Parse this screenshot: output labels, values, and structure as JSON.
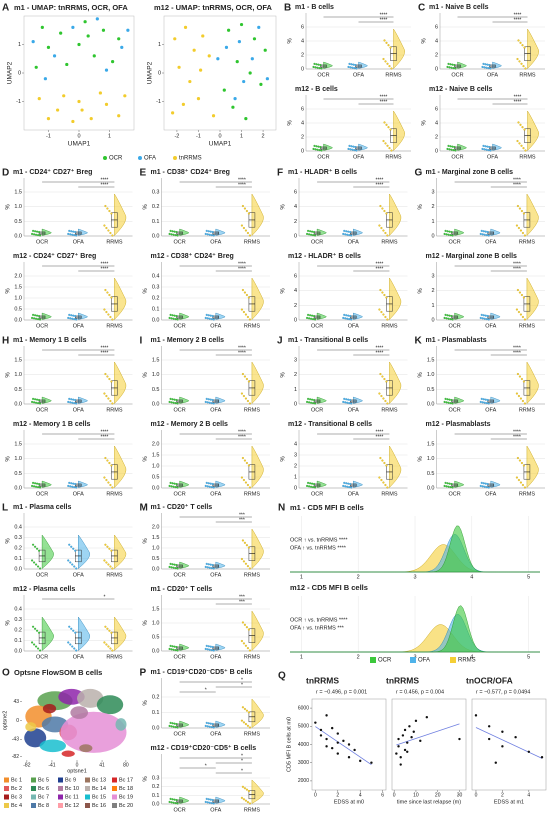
{
  "groups": [
    "OCR",
    "OFA",
    "RRMS"
  ],
  "ylabel": "%",
  "umap": {
    "legend": [
      "OCR",
      "OFA",
      "tnRRMS"
    ],
    "colors": [
      "#2fc52f",
      "#3aa9e8",
      "#f2cc2c"
    ],
    "panels": [
      {
        "letter": "A",
        "title": "m1 - UMAP: tnRRMS, OCR, OFA",
        "xlabel": "UMAP1",
        "ylabel": "UMAP2",
        "xlim": [
          -1.8,
          1.8
        ],
        "xticks": [
          -1,
          0,
          1
        ],
        "ylim": [
          -2,
          2
        ],
        "yticks": [
          -1,
          0,
          1
        ],
        "series": [
          {
            "x": [
              -1.2,
              -0.6,
              0.2,
              0.8,
              1.3,
              -1.0,
              0.0,
              0.5,
              -0.4,
              1.1,
              -1.4,
              0.3
            ],
            "values": [
              1.6,
              1.4,
              1.8,
              1.5,
              1.2,
              0.9,
              1.0,
              0.6,
              0.3,
              0.4,
              0.2,
              1.3
            ]
          },
          {
            "x": [
              -1.5,
              -0.8,
              0.6,
              1.4,
              -0.2,
              0.9,
              -1.1,
              1.6
            ],
            "values": [
              1.1,
              0.6,
              1.9,
              0.9,
              1.6,
              0.1,
              -0.2,
              1.5
            ]
          },
          {
            "x": [
              -1.3,
              -0.7,
              0.0,
              0.4,
              0.9,
              1.3,
              -0.2,
              0.7,
              -1.0,
              1.5,
              0.1,
              -0.5
            ],
            "values": [
              -0.9,
              -1.3,
              -1.0,
              -1.6,
              -1.1,
              -1.5,
              -1.7,
              -0.7,
              -1.6,
              -0.8,
              -1.3,
              -0.8
            ]
          }
        ]
      },
      {
        "letter": null,
        "title": "m12 - UMAP: tnRRMS, OCR, OFA",
        "xlabel": "UMAP1",
        "ylabel": "UMAP2",
        "xlim": [
          -2.6,
          2.6
        ],
        "xticks": [
          -2,
          -1,
          0,
          1,
          2
        ],
        "ylim": [
          -2,
          2
        ],
        "yticks": [
          -1,
          0,
          1
        ],
        "series": [
          {
            "x": [
              0.4,
              1.0,
              1.6,
              2.1,
              0.8,
              1.4,
              0.2,
              1.9,
              0.6,
              1.2
            ],
            "values": [
              1.5,
              1.7,
              1.2,
              0.8,
              0.4,
              0.0,
              -0.6,
              -0.4,
              -1.2,
              -1.6
            ]
          },
          {
            "x": [
              0.9,
              1.8,
              0.3,
              1.5,
              2.2,
              0.7,
              1.1,
              -0.1
            ],
            "values": [
              1.1,
              1.6,
              0.9,
              0.5,
              -0.2,
              -0.9,
              -0.3,
              0.5
            ]
          },
          {
            "x": [
              -2.1,
              -1.6,
              -1.2,
              -0.8,
              -1.9,
              -1.4,
              -0.5,
              -1.0,
              -2.2,
              -0.3,
              -1.7,
              -0.9
            ],
            "values": [
              1.2,
              1.6,
              0.8,
              1.3,
              0.2,
              -0.3,
              0.6,
              -0.9,
              -1.4,
              -1.5,
              -1.1,
              0.1
            ]
          }
        ]
      }
    ]
  },
  "violin_panels": [
    {
      "letter": "B",
      "subs": [
        {
          "title": "m1 - B cells",
          "ylim": [
            0,
            6
          ],
          "yticks": [
            0,
            2,
            4,
            6
          ],
          "sig": [
            "****",
            "****"
          ]
        },
        {
          "title": "m12 - B cells",
          "ylim": [
            0,
            6
          ],
          "yticks": [
            0,
            2,
            4,
            6
          ],
          "sig": [
            "****",
            "****"
          ]
        }
      ]
    },
    {
      "letter": "C",
      "subs": [
        {
          "title": "m1 - Naive B cells",
          "ylim": [
            0,
            6
          ],
          "yticks": [
            0,
            2,
            4,
            6
          ],
          "sig": [
            "****",
            "****"
          ]
        },
        {
          "title": "m12 - Naive B cells",
          "ylim": [
            0,
            6
          ],
          "yticks": [
            0,
            2,
            4,
            6
          ],
          "sig": [
            "****",
            "****"
          ]
        }
      ]
    },
    {
      "letter": "D",
      "subs": [
        {
          "title": "m1 - CD24⁺ CD27⁺ Breg",
          "ylim": [
            0,
            1.5
          ],
          "yticks": [
            {
              "value": 0,
              "label": "0.0"
            },
            0.5,
            {
              "value": 1,
              "label": "1.0"
            },
            1.5
          ],
          "sig": [
            "****",
            "****"
          ]
        },
        {
          "title": "m12 - CD24⁺ CD27⁺ Breg",
          "ylim": [
            0,
            2
          ],
          "yticks": [
            {
              "value": 0,
              "label": "0.0"
            },
            0.5,
            {
              "value": 1,
              "label": "1.0"
            },
            1.5,
            {
              "value": 2,
              "label": "2.0"
            }
          ],
          "sig": [
            "****",
            "****"
          ]
        }
      ]
    },
    {
      "letter": "E",
      "subs": [
        {
          "title": "m1 - CD38⁺ CD24⁺ Breg",
          "ylim": [
            0,
            0.3
          ],
          "yticks": [
            {
              "value": 0,
              "label": "0.0"
            },
            0.1,
            0.2,
            0.3
          ],
          "sig": [
            "****",
            "****"
          ]
        },
        {
          "title": "m12 - CD38⁺ CD24⁺ Breg",
          "ylim": [
            0,
            0.4
          ],
          "yticks": [
            {
              "value": 0,
              "label": "0.0"
            },
            0.1,
            0.2,
            0.3,
            0.4
          ],
          "sig": [
            "****",
            "****"
          ]
        }
      ]
    },
    {
      "letter": "F",
      "subs": [
        {
          "title": "m1 - HLADR⁺ B cells",
          "ylim": [
            0,
            6
          ],
          "yticks": [
            0,
            2,
            4,
            6
          ],
          "sig": [
            "****",
            "****"
          ]
        },
        {
          "title": "m12 - HLADR⁺ B cells",
          "ylim": [
            0,
            6
          ],
          "yticks": [
            0,
            2,
            4,
            6
          ],
          "sig": [
            "****",
            "****"
          ]
        }
      ]
    },
    {
      "letter": "G",
      "subs": [
        {
          "title": "m1 - Marginal zone B cells",
          "ylim": [
            0,
            3
          ],
          "yticks": [
            0,
            1,
            2,
            3
          ],
          "sig": [
            "****",
            "****"
          ]
        },
        {
          "title": "m12 - Marginal zone B cells",
          "ylim": [
            0,
            3
          ],
          "yticks": [
            0,
            1,
            2,
            3
          ],
          "sig": [
            "****",
            "****"
          ]
        }
      ]
    },
    {
      "letter": "H",
      "subs": [
        {
          "title": "m1 - Memory 1 B cells",
          "ylim": [
            0,
            1.5
          ],
          "yticks": [
            {
              "value": 0,
              "label": "0.0"
            },
            0.5,
            {
              "value": 1,
              "label": "1.0"
            },
            1.5
          ],
          "sig": [
            "****",
            "****"
          ]
        },
        {
          "title": "m12 - Memory 1 B cells",
          "ylim": [
            0,
            1.5
          ],
          "yticks": [
            {
              "value": 0,
              "label": "0.0"
            },
            0.5,
            {
              "value": 1,
              "label": "1.0"
            },
            1.5
          ],
          "sig": [
            "****",
            "****"
          ]
        }
      ]
    },
    {
      "letter": "I",
      "subs": [
        {
          "title": "m1 - Memory 2 B cells",
          "ylim": [
            0,
            1.5
          ],
          "yticks": [
            {
              "value": 0,
              "label": "0.0"
            },
            0.5,
            {
              "value": 1,
              "label": "1.0"
            },
            1.5
          ],
          "sig": [
            "****",
            "****"
          ]
        },
        {
          "title": "m12 - Memory 2 B cells",
          "ylim": [
            0,
            2
          ],
          "yticks": [
            {
              "value": 0,
              "label": "0.0"
            },
            0.5,
            {
              "value": 1,
              "label": "1.0"
            },
            1.5,
            {
              "value": 2,
              "label": "2.0"
            }
          ],
          "sig": [
            "****",
            "****"
          ]
        }
      ]
    },
    {
      "letter": "J",
      "subs": [
        {
          "title": "m1 - Transitional B cells",
          "ylim": [
            0,
            3
          ],
          "yticks": [
            0,
            1,
            2,
            3
          ],
          "sig": [
            "****",
            "****"
          ]
        },
        {
          "title": "m12 - Transitional B cells",
          "ylim": [
            0,
            4
          ],
          "yticks": [
            0,
            1,
            2,
            3,
            4
          ],
          "sig": [
            "****",
            "****"
          ]
        }
      ]
    },
    {
      "letter": "K",
      "subs": [
        {
          "title": "m1 - Plasmablasts",
          "ylim": [
            0,
            1.5
          ],
          "yticks": [
            {
              "value": 0,
              "label": "0.0"
            },
            0.5,
            {
              "value": 1,
              "label": "1.0"
            },
            1.5
          ],
          "sig": [
            "****",
            "****"
          ]
        },
        {
          "title": "m12 - Plasmablasts",
          "ylim": [
            0,
            1.5
          ],
          "yticks": [
            {
              "value": 0,
              "label": "0.0"
            },
            0.5,
            {
              "value": 1,
              "label": "1.0"
            },
            1.5
          ],
          "sig": [
            "****",
            "****"
          ]
        }
      ]
    },
    {
      "letter": "L",
      "subs": [
        {
          "title": "m1 - Plasma cells",
          "ylim": [
            0,
            0.4
          ],
          "yticks": [
            {
              "value": 0,
              "label": "0.0"
            },
            0.1,
            0.2,
            0.3,
            0.4
          ],
          "sig": []
        },
        {
          "title": "m12 - Plasma cells",
          "ylim": [
            0,
            0.4
          ],
          "yticks": [
            {
              "value": 0,
              "label": "0.0"
            },
            0.1,
            0.2,
            0.3,
            0.4
          ],
          "sig": [
            "*"
          ]
        }
      ]
    },
    {
      "letter": "M",
      "subs": [
        {
          "title": "m1 - CD20⁺ T cells",
          "ylim": [
            0,
            2
          ],
          "yticks": [
            {
              "value": 0,
              "label": "0.0"
            },
            0.5,
            {
              "value": 1,
              "label": "1.0"
            },
            1.5,
            {
              "value": 2,
              "label": "2.0"
            }
          ],
          "sig": [
            "***",
            "***"
          ]
        },
        {
          "title": "m1 - CD20⁺ T cells",
          "ylim": [
            0,
            1.5
          ],
          "yticks": [
            {
              "value": 0,
              "label": "0.0"
            },
            0.5,
            {
              "value": 1,
              "label": "1.0"
            },
            1.5
          ],
          "sig": [
            "***",
            "***"
          ]
        }
      ]
    },
    {
      "letter": "P",
      "subs": [
        {
          "title": "m1 - CD19⁺CD20⁻CD5⁺ B cells",
          "ylim": [
            0,
            0.2
          ],
          "yticks": [
            {
              "value": 0,
              "label": "0.0"
            },
            0.1,
            0.2
          ],
          "sig": [
            "*",
            "*",
            "*"
          ]
        },
        {
          "title": "m12 - CD19⁺CD20⁻CD5⁺ B cells",
          "ylim": [
            0,
            0.3
          ],
          "yticks": [
            {
              "value": 0,
              "label": "0.0"
            },
            0.1,
            0.2,
            0.3
          ],
          "sig": [
            "*",
            "*",
            "*",
            "*"
          ]
        }
      ]
    }
  ],
  "density": {
    "letter": "N",
    "subs": [
      {
        "title": "m1 - CD5 MFI B cells",
        "xlim": [
          0.8,
          5.2
        ],
        "xticks": [
          1,
          2,
          3,
          4,
          5
        ],
        "modes": [
          3.75,
          3.7,
          3.5
        ],
        "annotations": [
          "OCR ↑ vs. tnRRMS ****",
          "OFA ↑ vs. tnRRMS ****"
        ]
      },
      {
        "title": "m12 - CD5 MFI B cells",
        "xlim": [
          0.8,
          5.2
        ],
        "xticks": [
          1,
          2,
          3,
          4,
          5
        ],
        "modes": [
          3.8,
          3.75,
          3.45
        ],
        "annotations": [
          "OCR ↑ vs. tnRRMS ****",
          "OFA ↑ vs. tnRRMS ***"
        ]
      }
    ]
  },
  "tsne": {
    "letter": "O",
    "title": "Optsne FlowSOM B cells",
    "xlabel": "optsne1",
    "ylabel": "optsne2",
    "xlim": [
      -90,
      90
    ],
    "xticks": [
      -82,
      -41,
      0,
      41,
      80
    ],
    "ylim": [
      -90,
      90
    ],
    "yticks": [
      -82,
      -43,
      0,
      43
    ],
    "clusters": [
      "Bc 1",
      "Bc 2",
      "Bc 3",
      "Bc 4",
      "Bc 5",
      "Bc 6",
      "Bc 7",
      "Bc 8",
      "Bc 9",
      "Bc 10",
      "Bc 11",
      "Bc 12",
      "Bc 13",
      "Bc 14",
      "Bc 15",
      "Bc 16",
      "Bc 17",
      "Bc 18",
      "Bc 19",
      "Bc 20"
    ],
    "colors": [
      "#f28e2b",
      "#e15759",
      "#a61c1c",
      "#edc948",
      "#59a14f",
      "#2e8b57",
      "#76b7b2",
      "#4e79a7",
      "#1f3f8f",
      "#b07aa1",
      "#8e24aa",
      "#ff9da7",
      "#9c755f",
      "#bab0ac",
      "#17becf",
      "#8c564b",
      "#d62728",
      "#ff7f0e",
      "#e58fd6",
      "#7f7f7f"
    ]
  },
  "correlations": {
    "letter": "Q",
    "ylabel": "CD5 MFI B cells at m0",
    "ylim": [
      1500,
      6500
    ],
    "yticks": [
      2000,
      3000,
      4000,
      5000,
      6000
    ],
    "panels": [
      {
        "title": "tnRRMS",
        "stat": "r = −0.496, p = 0.001",
        "xlabel": "EDSS at m0",
        "xlim": [
          -0.3,
          6.3
        ],
        "xticks": [
          0,
          2,
          4,
          6
        ],
        "x": [
          0,
          0.5,
          1,
          1,
          1.5,
          1.5,
          2,
          2,
          2.5,
          3,
          3,
          3.5,
          4,
          1,
          0.5,
          2,
          5
        ],
        "values": [
          5200,
          4800,
          5600,
          4300,
          4900,
          3800,
          4600,
          3500,
          4200,
          4000,
          3300,
          3700,
          3100,
          3900,
          4500,
          4100,
          3000
        ]
      },
      {
        "title": "tnRRMS",
        "stat": "r = 0.456, p = 0.004",
        "xlabel": "time since last relapse (m)",
        "xlim": [
          -1,
          33
        ],
        "xticks": [
          0,
          10,
          20,
          30
        ],
        "x": [
          1,
          2,
          2,
          3,
          4,
          5,
          5,
          6,
          7,
          8,
          9,
          10,
          12,
          15,
          3,
          6,
          30
        ],
        "values": [
          3500,
          3900,
          4300,
          3300,
          4500,
          3700,
          4800,
          4100,
          5000,
          4400,
          4700,
          5300,
          4200,
          5500,
          2900,
          3600,
          4300
        ]
      },
      {
        "title": "tnOCR/OFA",
        "stat": "r = −0.577, p = 0.0494",
        "xlabel": "EDSS at m1",
        "xlim": [
          -0.3,
          5.3
        ],
        "xticks": [
          0,
          2,
          4
        ],
        "x": [
          0,
          1,
          1,
          2,
          2,
          3,
          4,
          5,
          1.5
        ],
        "values": [
          5600,
          4300,
          5000,
          4700,
          3900,
          4400,
          3600,
          3300,
          3000
        ]
      }
    ]
  }
}
